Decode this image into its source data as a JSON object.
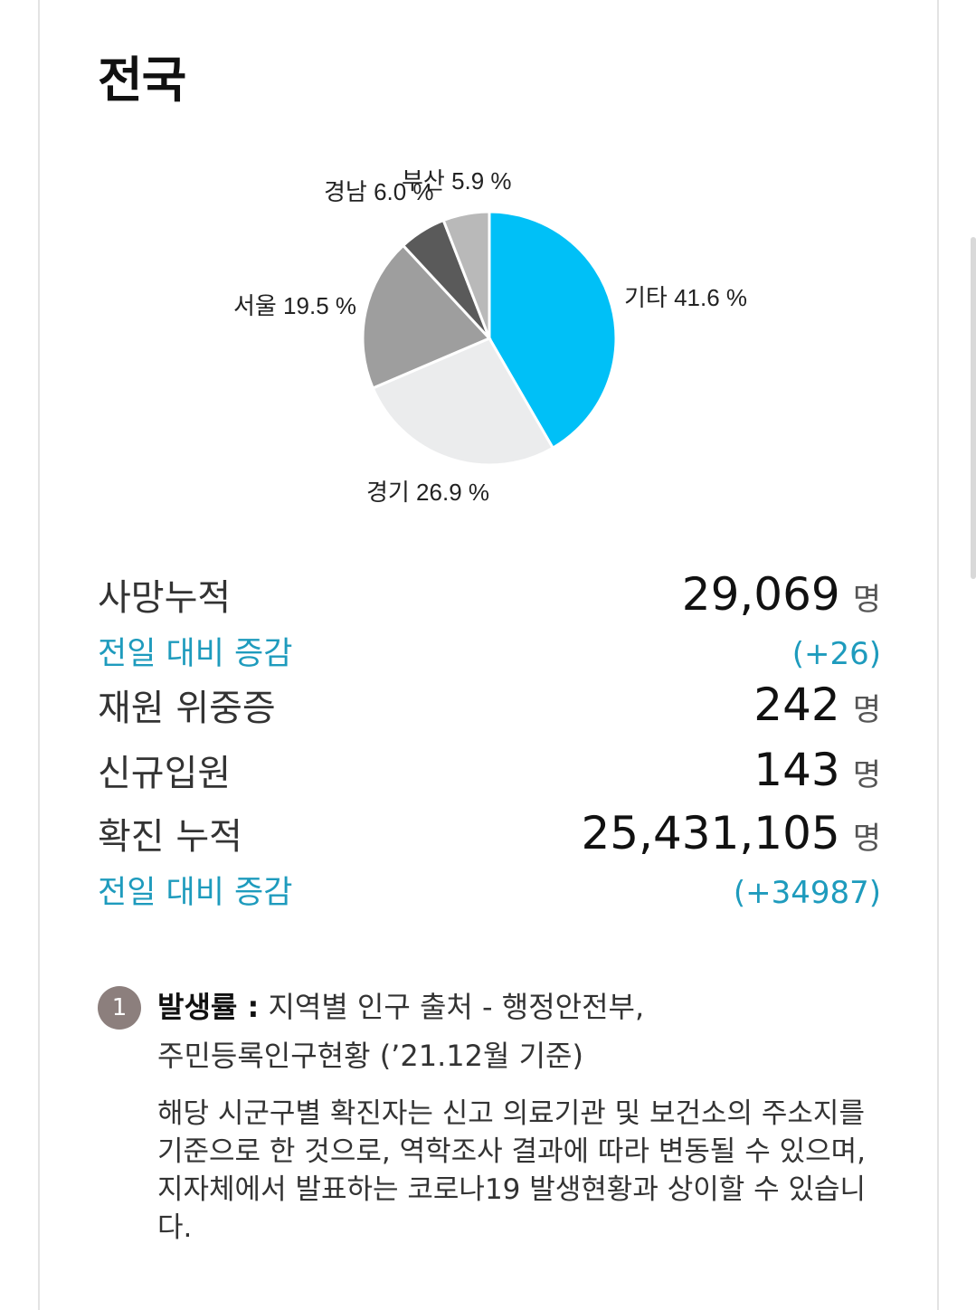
{
  "page": {
    "title": "전국"
  },
  "chart_data": {
    "type": "pie",
    "slices": [
      {
        "name": "기타",
        "value": 41.6,
        "label": "기타 41.6 %",
        "color": "#00c0f7"
      },
      {
        "name": "경기",
        "value": 26.9,
        "label": "경기 26.9 %",
        "color": "#ebeced"
      },
      {
        "name": "서울",
        "value": 19.5,
        "label": "서울 19.5 %",
        "color": "#9e9e9e"
      },
      {
        "name": "경남",
        "value": 6.0,
        "label": "경남 6.0 %",
        "color": "#5a5a5a"
      },
      {
        "name": "부산",
        "value": 5.9,
        "label": "부산 5.9 %",
        "color": "#b9b9b9"
      }
    ]
  },
  "stats": {
    "deaths": {
      "label": "사망누적",
      "value": "29,069",
      "unit": "명"
    },
    "deaths_delta": {
      "label": "전일 대비 증감",
      "value": "(+26)"
    },
    "critical": {
      "label": "재원 위중증",
      "value": "242",
      "unit": "명"
    },
    "admissions": {
      "label": "신규입원",
      "value": "143",
      "unit": "명"
    },
    "confirmed": {
      "label": "확진 누적",
      "value": "25,431,105",
      "unit": "명"
    },
    "confirmed_delta": {
      "label": "전일 대비 증감",
      "value": "(+34987)"
    }
  },
  "notes": {
    "badge": "1",
    "heading": "발생률 :",
    "line1": "지역별 인구 출처 - 행정안전부,",
    "line2": "주민등록인구현황 (’21.12월 기준)",
    "paragraph": "해당 시군구별 확진자는 신고 의료기관 및 보건소의 주소지를 기준으로 한 것으로, 역학조사 결과에 따라 변동될 수 있으며, 지자체에서 발표하는 코로나19 발생현황과 상이할 수 있습니다."
  }
}
